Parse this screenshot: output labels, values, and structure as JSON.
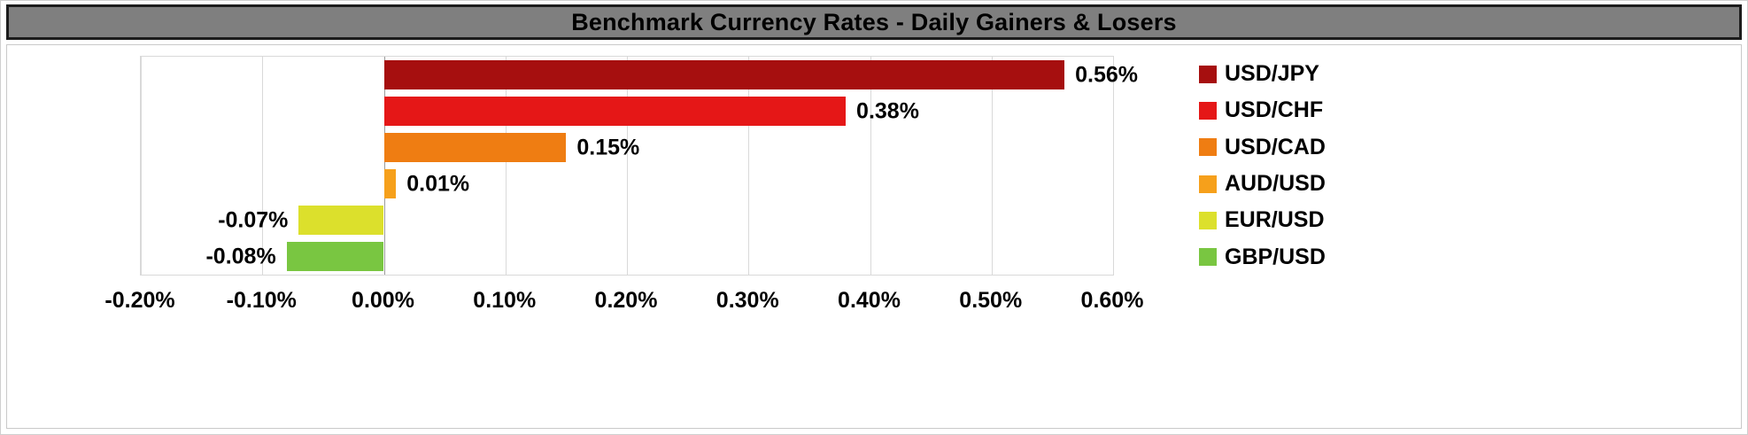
{
  "title": "Benchmark Currency Rates - Daily Gainers &amp; Losers",
  "chart_data": {
    "type": "bar",
    "orientation": "horizontal",
    "title": "Benchmark Currency Rates - Daily Gainers & Losers",
    "categories": [
      "USD/JPY",
      "USD/CHF",
      "USD/CAD",
      "AUD/USD",
      "EUR/USD",
      "GBP/USD"
    ],
    "values": [
      0.56,
      0.38,
      0.15,
      0.01,
      -0.07,
      -0.08
    ],
    "value_labels": [
      "0.56%",
      "0.38%",
      "0.15%",
      "0.01%",
      "-0.07%",
      "-0.08%"
    ],
    "colors": [
      "#a60f0f",
      "#e51717",
      "#ef7d12",
      "#f6a01b",
      "#dce02c",
      "#79c641"
    ],
    "xlim": [
      -0.2,
      0.6
    ],
    "x_tick_values": [
      -0.2,
      -0.1,
      0.0,
      0.1,
      0.2,
      0.3,
      0.4,
      0.5,
      0.6
    ],
    "x_ticks": [
      "-0.20%",
      "-0.10%",
      "0.00%",
      "0.10%",
      "0.20%",
      "0.30%",
      "0.40%",
      "0.50%",
      "0.60%"
    ],
    "legend_position": "right",
    "grid": true,
    "colors_meta": {
      "title_bar_bg": "#7f7f7f",
      "title_bar_border": "#1c1c1c",
      "gridline": "#d9d9d9",
      "zero_axis": "#9b9b9b"
    }
  }
}
